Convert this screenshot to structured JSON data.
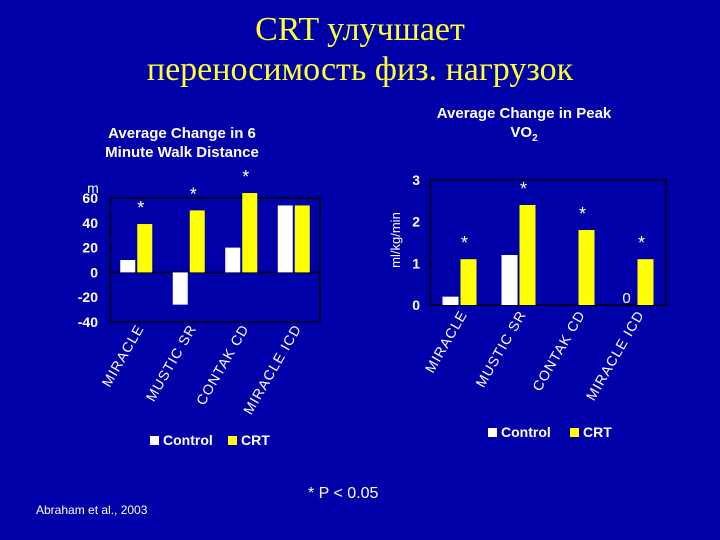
{
  "slide": {
    "title_line1": "CRT улучшает",
    "title_line2": "переносимость физ. нагрузок",
    "citation": "Abraham et al., 2003",
    "footnote": "* P < 0.05"
  },
  "colors": {
    "background": "#0000a8",
    "title": "#ffff33",
    "control": "#ffffff",
    "crt": "#ffff00",
    "axis": "#000000"
  },
  "chart_data": [
    {
      "type": "bar",
      "title": "Average Change in 6 Minute Walk Distance",
      "title_lines": [
        "Average Change in 6",
        "Minute Walk Distance"
      ],
      "ylabel": "m",
      "ylim": [
        -40,
        60
      ],
      "yticks": [
        60,
        40,
        20,
        0,
        -20,
        -40
      ],
      "categories": [
        "MIRACLE",
        "MUSTIC SR",
        "CONTAK CD",
        "MIRACLE ICD"
      ],
      "series": [
        {
          "name": "Control",
          "values": [
            10,
            -26,
            20,
            54
          ]
        },
        {
          "name": "CRT",
          "values": [
            39,
            50,
            64,
            54
          ]
        }
      ],
      "annotations": [
        "*",
        "*",
        "*",
        ""
      ],
      "legend": "bottom"
    },
    {
      "type": "bar",
      "title": "Average Change in Peak VO2",
      "title_lines": [
        "Average Change in Peak",
        "VO2"
      ],
      "ylabel": "ml/kg/min",
      "ylim": [
        0,
        3
      ],
      "yticks": [
        3,
        2,
        1,
        0
      ],
      "categories": [
        "MIRACLE",
        "MUSTIC SR",
        "CONTAK CD",
        "MIRACLE ICD"
      ],
      "series": [
        {
          "name": "Control",
          "values": [
            0.2,
            1.2,
            0,
            0
          ]
        },
        {
          "name": "CRT",
          "values": [
            1.1,
            2.4,
            1.8,
            1.1
          ]
        }
      ],
      "annotations": [
        "*",
        "*",
        "*",
        "*"
      ],
      "value_labels": [
        "",
        "",
        "",
        "0"
      ],
      "legend": "bottom"
    }
  ]
}
